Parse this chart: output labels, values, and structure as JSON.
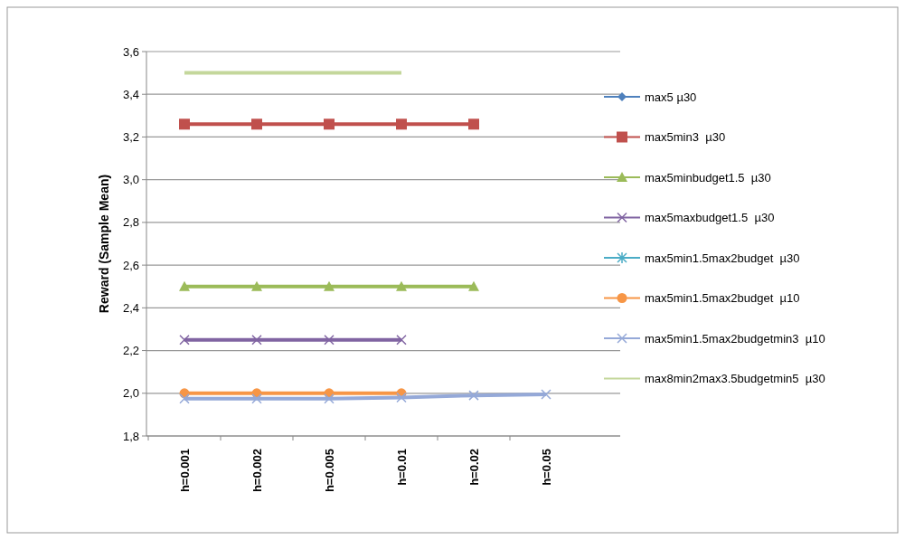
{
  "chart_data": {
    "type": "line",
    "ylabel": "Reward  (Sample Mean)",
    "categories": [
      "h=0.001",
      "h=0.002",
      "h=0.005",
      "h=0.01",
      "h=0.02",
      "h=0.05"
    ],
    "series": [
      {
        "name": "max5 µ30",
        "color": "#4f81bd",
        "marker": "diamond",
        "values": [
          null,
          null,
          null,
          null,
          null,
          null
        ]
      },
      {
        "name": "max5min3  µ30",
        "color": "#c0504d",
        "marker": "square",
        "values": [
          3.26,
          3.26,
          3.26,
          3.26,
          3.26,
          null
        ]
      },
      {
        "name": "max5minbudget1.5  µ30",
        "color": "#9bbb59",
        "marker": "triangle",
        "values": [
          2.5,
          2.5,
          2.5,
          2.5,
          2.5,
          null
        ]
      },
      {
        "name": "max5maxbudget1.5  µ30",
        "color": "#8064a2",
        "marker": "cross",
        "values": [
          2.25,
          2.25,
          2.25,
          2.25,
          null,
          null
        ]
      },
      {
        "name": "max5min1.5max2budget  µ30",
        "color": "#4bacc6",
        "marker": "star",
        "values": [
          null,
          null,
          null,
          null,
          null,
          null
        ]
      },
      {
        "name": "max5min1.5max2budget  µ10",
        "color": "#f79646",
        "marker": "circle",
        "values": [
          2.0,
          2.0,
          2.0,
          2.0,
          null,
          null
        ]
      },
      {
        "name": "max5min1.5max2budgetmin3  µ10",
        "color": "#95a9d8",
        "marker": "cross",
        "values": [
          1.975,
          1.975,
          1.975,
          1.98,
          1.99,
          1.995
        ]
      },
      {
        "name": "max8min2max3.5budgetmin5  µ30",
        "color": "#c4d79b",
        "marker": "none",
        "values": [
          3.5,
          3.5,
          3.5,
          3.5,
          null,
          null
        ]
      }
    ],
    "ylim": [
      1.8,
      3.6
    ],
    "yticks": [
      {
        "value": 1.8,
        "label": "1,8"
      },
      {
        "value": 2.0,
        "label": "2,0"
      },
      {
        "value": 2.2,
        "label": "2,2"
      },
      {
        "value": 2.4,
        "label": "2,4"
      },
      {
        "value": 2.6,
        "label": "2,6"
      },
      {
        "value": 2.8,
        "label": "2,8"
      },
      {
        "value": 3.0,
        "label": "3,0"
      },
      {
        "value": 3.2,
        "label": "3,2"
      },
      {
        "value": 3.4,
        "label": "3,4"
      },
      {
        "value": 3.6,
        "label": "3,6"
      }
    ],
    "grid": "y",
    "legend": "right",
    "line_style": "solid"
  }
}
